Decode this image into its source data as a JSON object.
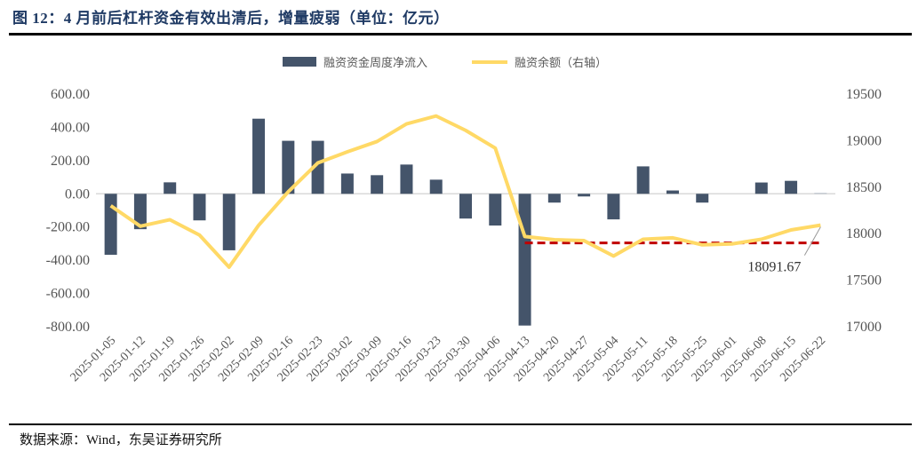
{
  "header": {
    "title": "图 12：4 月前后杠杆资金有效出清后，增量疲弱（单位：亿元）"
  },
  "footer": {
    "source": "数据来源：Wind，东吴证券研究所"
  },
  "colors": {
    "bar": "#44546a",
    "line": "#ffd966",
    "reference": "#c00000",
    "title": "#1f3a64"
  },
  "chart_data": {
    "type": "bar",
    "title": "4 月前后杠杆资金有效出清后，增量疲弱（单位：亿元）",
    "xlabel": "",
    "ylabel": "",
    "y2label": "",
    "categories": [
      "2025-01-05",
      "2025-01-12",
      "2025-01-19",
      "2025-01-26",
      "2025-02-02",
      "2025-02-09",
      "2025-02-16",
      "2025-02-23",
      "2025-03-02",
      "2025-03-09",
      "2025-03-16",
      "2025-03-23",
      "2025-03-30",
      "2025-04-06",
      "2025-04-13",
      "2025-04-20",
      "2025-04-27",
      "2025-05-04",
      "2025-05-11",
      "2025-05-18",
      "2025-05-25",
      "2025-06-01",
      "2025-06-08",
      "2025-06-15",
      "2025-06-22"
    ],
    "series": [
      {
        "name": "融资资金周度净流入",
        "type": "bar",
        "axis": "left",
        "values": [
          -367,
          -213,
          69,
          -160,
          -340,
          452,
          319,
          319,
          122,
          112,
          176,
          85,
          -149,
          -191,
          -793,
          -53,
          -16,
          -154,
          165,
          20,
          -53,
          0,
          68,
          78,
          5
        ]
      },
      {
        "name": "融资余额（右轴）",
        "type": "line",
        "axis": "right",
        "values": [
          18300,
          18080,
          18150,
          17985,
          17640,
          18090,
          18450,
          18760,
          18880,
          18990,
          19180,
          19265,
          19110,
          18920,
          17970,
          17935,
          17925,
          17760,
          17940,
          17955,
          17880,
          17890,
          17940,
          18040,
          18091.67
        ]
      }
    ],
    "reference_line": {
      "axis": "right",
      "value": 17900,
      "from": "2025-04-13",
      "to": "2025-06-22",
      "style": "dashed"
    },
    "annotation": {
      "label": "18091.67",
      "at": "2025-06-22",
      "series": "融资余额（右轴）"
    },
    "y_left": {
      "min": -800,
      "max": 600,
      "step": 200,
      "ticks": [
        "600.00",
        "400.00",
        "200.00",
        "0.00",
        "-200.00",
        "-400.00",
        "-600.00",
        "-800.00"
      ]
    },
    "y_right": {
      "min": 17000,
      "max": 19500,
      "step": 500,
      "ticks": [
        "19500",
        "19000",
        "18500",
        "18000",
        "17500",
        "17000"
      ]
    },
    "legend": {
      "position": "top",
      "entries": [
        "融资资金周度净流入",
        "融资余额（右轴）"
      ]
    },
    "grid": false
  }
}
